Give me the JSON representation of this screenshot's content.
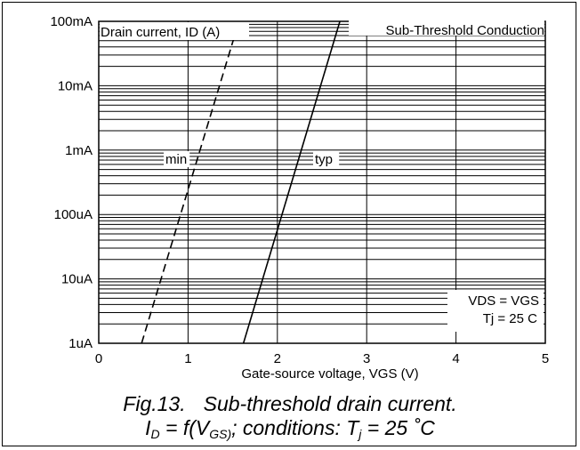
{
  "chart_data": {
    "type": "line",
    "title": "Sub-Threshold Conduction",
    "ylabel": "Drain current, ID (A)",
    "xlabel": "Gate-source voltage, VGS (V)",
    "xlim": [
      0,
      5
    ],
    "ylim": [
      1e-06,
      0.1
    ],
    "y_scale": "log",
    "grid": true,
    "x_ticks": [
      0,
      1,
      2,
      3,
      4,
      5
    ],
    "x_tick_labels": [
      "0",
      "1",
      "2",
      "3",
      "4",
      "5"
    ],
    "y_ticks": [
      1e-06,
      1e-05,
      0.0001,
      0.001,
      0.01,
      0.1
    ],
    "y_tick_labels": [
      "1uA",
      "10uA",
      "100uA",
      "1mA",
      "10mA",
      "100mA"
    ],
    "series": [
      {
        "name": "min",
        "style": "dashed",
        "x": [
          0.48,
          1.57
        ],
        "y": [
          1e-06,
          0.1
        ]
      },
      {
        "name": "typ",
        "style": "solid",
        "x": [
          1.62,
          2.7
        ],
        "y": [
          1e-06,
          0.1
        ]
      }
    ],
    "annotations": [
      "VDS = VGS",
      "Tj = 25 C"
    ]
  },
  "caption": {
    "fig": "Fig.13.",
    "title": "Sub-threshold drain current.",
    "line2": {
      "i": "I",
      "i_sub": "D",
      "eq": " = f(V",
      "v_sub": "GS)",
      "cond": "; conditions: T",
      "t_sub": "j",
      "tail": " = 25 ˚C"
    }
  }
}
